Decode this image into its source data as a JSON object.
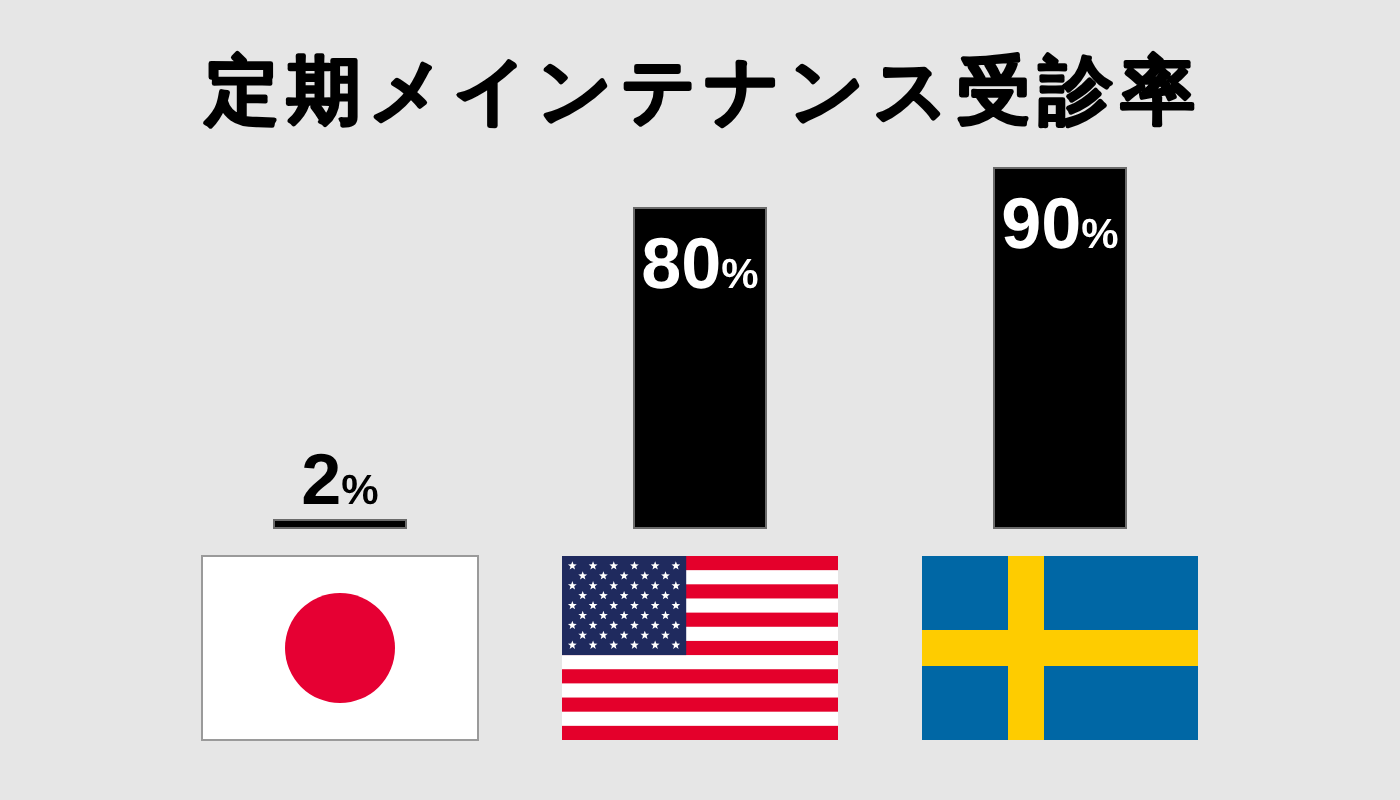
{
  "chart_data": {
    "type": "bar",
    "title": "定期メインテナンス受診率",
    "categories": [
      null,
      null,
      null
    ],
    "values": [
      2,
      80,
      90
    ],
    "color": "#000000",
    "value_labels": [
      "2%",
      "80%",
      "90%"
    ]
  }
}
